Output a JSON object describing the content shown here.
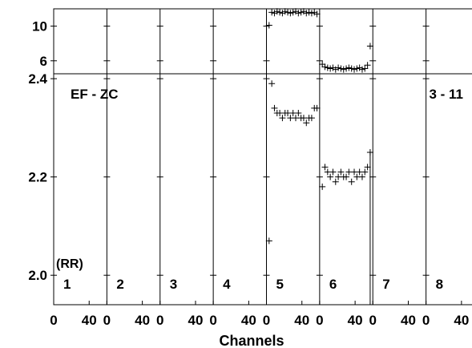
{
  "chart_data": {
    "type": "scatter",
    "title": "",
    "label_left": "EF - ZC",
    "label_right": "3 - 11",
    "corner_label": "(RR)",
    "xlabel": "Channels",
    "panels": [
      {
        "label": "1",
        "x_ticks": [
          "0",
          "40"
        ],
        "points": []
      },
      {
        "label": "2",
        "x_ticks": [
          "0",
          "40"
        ],
        "points": []
      },
      {
        "label": "3",
        "x_ticks": [
          "0",
          "40"
        ],
        "points": []
      },
      {
        "label": "4",
        "x_ticks": [
          "0",
          "40"
        ],
        "points": []
      },
      {
        "label": "5",
        "x_ticks": [
          "0",
          "40"
        ],
        "points": "see series"
      },
      {
        "label": "6",
        "x_ticks": [
          "0",
          "40"
        ],
        "points": "see series"
      },
      {
        "label": "7",
        "x_ticks": [
          "0",
          "40"
        ],
        "points": []
      },
      {
        "label": "8",
        "x_ticks": [
          "0",
          "40"
        ],
        "points": []
      }
    ],
    "x_range_per_panel": [
      0,
      60
    ],
    "top_axis": {
      "ylim": [
        4.5,
        12
      ],
      "ticks": [
        6,
        10
      ],
      "tick_labels": [
        "6",
        "10"
      ]
    },
    "bottom_axis": {
      "ylim": [
        1.94,
        2.41
      ],
      "ticks": [
        2.0,
        2.2,
        2.4
      ],
      "tick_labels": [
        "2.0",
        "2.2",
        "2.4"
      ]
    },
    "series": [
      {
        "panel": 5,
        "x": [
          3,
          6,
          9,
          12,
          15,
          18,
          21,
          24,
          27,
          30,
          33,
          36,
          39,
          42,
          45,
          48,
          51,
          54,
          57
        ],
        "top": [
          10.1,
          11.6,
          11.5,
          11.7,
          11.6,
          11.5,
          11.7,
          11.6,
          11.5,
          11.6,
          11.7,
          11.5,
          11.6,
          11.7,
          11.5,
          11.6,
          11.5,
          11.6,
          11.4
        ],
        "bottom": [
          2.07,
          2.39,
          2.34,
          2.33,
          2.33,
          2.32,
          2.33,
          2.33,
          2.32,
          2.33,
          2.32,
          2.33,
          2.32,
          2.32,
          2.31,
          2.32,
          2.32,
          2.34,
          2.34
        ]
      },
      {
        "panel": 6,
        "x": [
          3,
          6,
          9,
          12,
          15,
          18,
          21,
          24,
          27,
          30,
          33,
          36,
          39,
          42,
          45,
          48,
          51,
          54,
          57
        ],
        "top": [
          5.6,
          5.3,
          5.2,
          5.1,
          5.2,
          5.0,
          5.2,
          5.1,
          5.0,
          5.1,
          5.2,
          5.1,
          5.0,
          5.1,
          5.2,
          5.0,
          5.1,
          5.5,
          7.7
        ],
        "bottom": [
          2.18,
          2.22,
          2.21,
          2.2,
          2.21,
          2.19,
          2.2,
          2.21,
          2.2,
          2.2,
          2.21,
          2.19,
          2.21,
          2.2,
          2.21,
          2.2,
          2.21,
          2.22,
          2.25
        ]
      }
    ],
    "panel6_vertical_line_bottom": 1.94,
    "grid": false
  }
}
